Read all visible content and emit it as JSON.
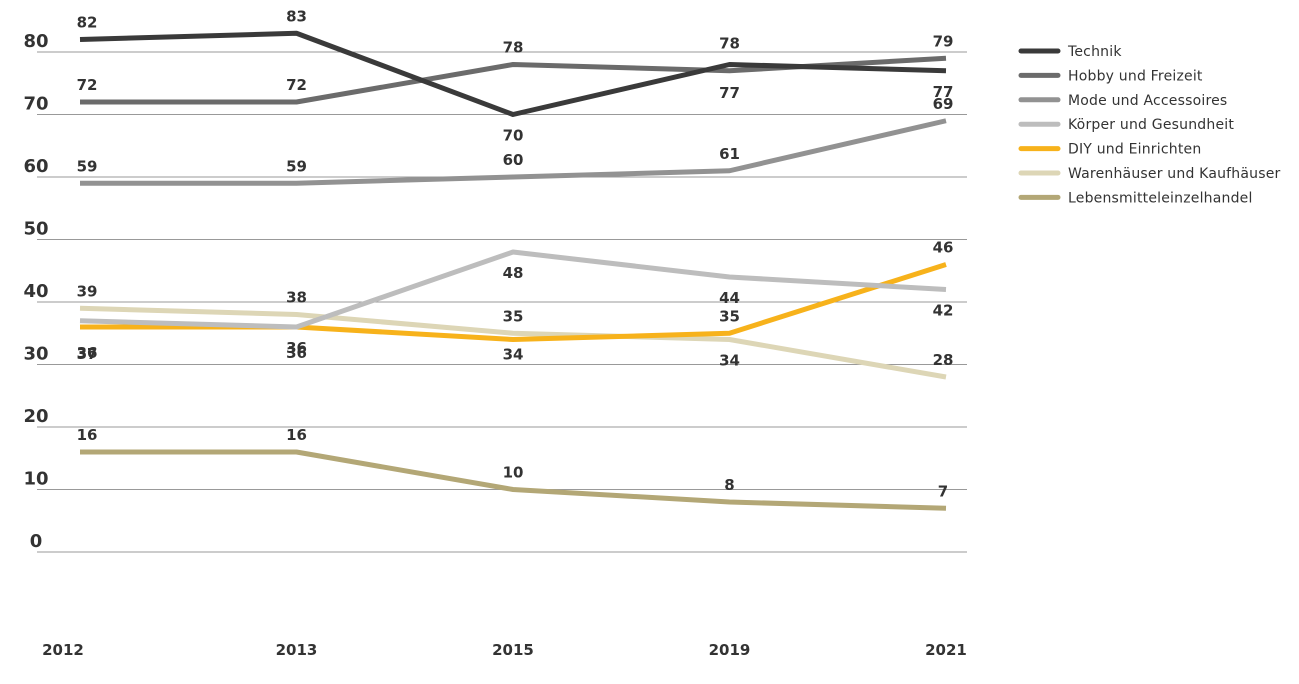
{
  "chart_data": {
    "type": "line",
    "categories": [
      "2012",
      "2013",
      "2015",
      "2019",
      "2021"
    ],
    "ylim": [
      0,
      80
    ],
    "yticks": [
      0,
      10,
      20,
      30,
      40,
      50,
      60,
      70,
      80
    ],
    "grid": true,
    "legend_position": "right",
    "series": [
      {
        "name": "Technik",
        "values": [
          82,
          83,
          70,
          78,
          77
        ],
        "color": "#3a3a3a"
      },
      {
        "name": "Hobby und Freizeit",
        "values": [
          72,
          72,
          78,
          77,
          79
        ],
        "color": "#6b6b6b"
      },
      {
        "name": "Mode und Accessoires",
        "values": [
          59,
          59,
          60,
          61,
          69
        ],
        "color": "#929292"
      },
      {
        "name": "Körper und Gesundheit",
        "values": [
          37,
          36,
          48,
          44,
          42
        ],
        "color": "#bdbdbd"
      },
      {
        "name": "DIY und Einrichten",
        "values": [
          36,
          36,
          34,
          35,
          46
        ],
        "color": "#f7b21b"
      },
      {
        "name": "Warenhäuser und Kaufhäuser",
        "values": [
          39,
          38,
          35,
          34,
          28
        ],
        "color": "#ddd6b6"
      },
      {
        "name": "Lebensmitteleinzelhandel",
        "values": [
          16,
          16,
          10,
          8,
          7
        ],
        "color": "#b3a776"
      }
    ]
  }
}
